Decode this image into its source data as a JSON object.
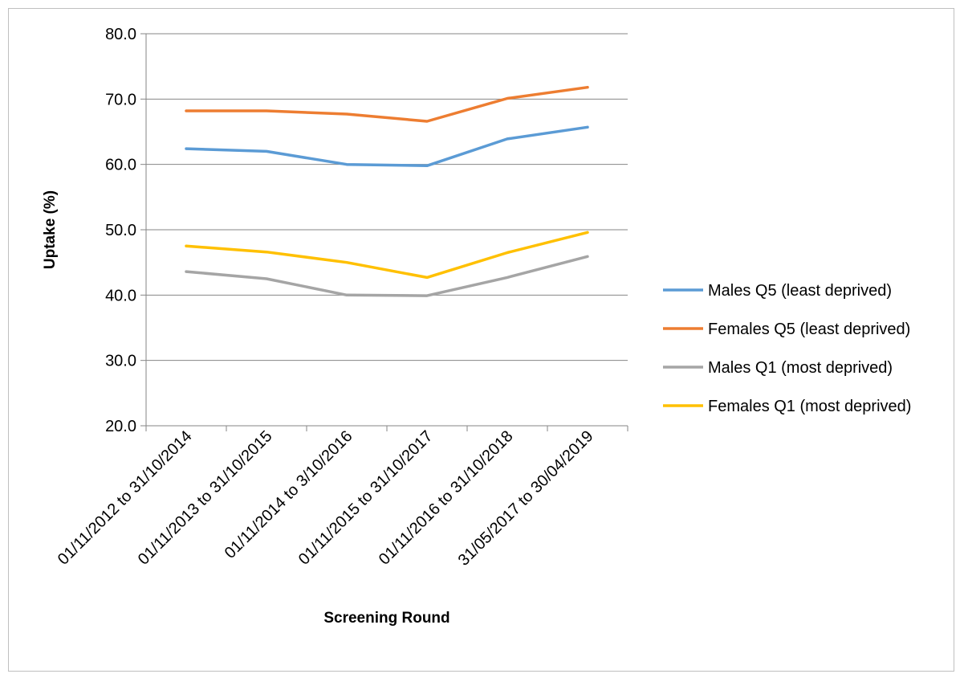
{
  "chart_data": {
    "type": "line",
    "title": "",
    "xlabel": "Screening Round",
    "ylabel": "Uptake (%)",
    "ylim": [
      20,
      80
    ],
    "y_ticks": [
      "20.0",
      "30.0",
      "40.0",
      "50.0",
      "60.0",
      "70.0",
      "80.0"
    ],
    "grid": "horizontal",
    "legend_position": "right",
    "categories": [
      "01/11/2012 to 31/10/2014",
      "01/11/2013 to 31/10/2015",
      "01/11/2014 to 3/10/2016",
      "01/11/2015 to 31/10/2017",
      "01/11/2016 to 31/10/2018",
      "31/05/2017 to 30/04/2019"
    ],
    "series": [
      {
        "name": "Males Q5 (least deprived)",
        "color": "#5B9BD5",
        "values": [
          62.4,
          62.0,
          60.0,
          59.8,
          63.9,
          65.7
        ]
      },
      {
        "name": "Females Q5 (least deprived)",
        "color": "#ED7D31",
        "values": [
          68.2,
          68.2,
          67.7,
          66.6,
          70.1,
          71.8
        ]
      },
      {
        "name": "Males Q1 (most deprived)",
        "color": "#A5A5A5",
        "values": [
          43.6,
          42.5,
          40.0,
          39.9,
          42.7,
          45.9
        ]
      },
      {
        "name": "Females Q1 (most deprived)",
        "color": "#FFC000",
        "values": [
          47.5,
          46.6,
          45.0,
          42.7,
          46.5,
          49.6
        ]
      }
    ]
  }
}
